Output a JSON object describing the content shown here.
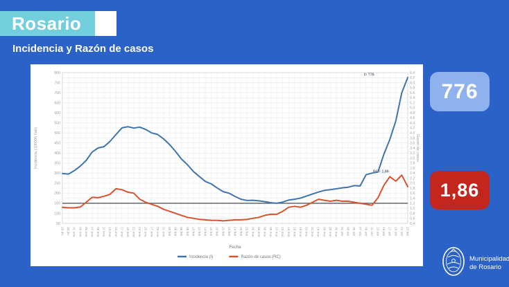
{
  "header": {
    "title": "Rosario",
    "subtitle": "Incidencia y Razón de casos"
  },
  "badges": {
    "incidence": {
      "value": "776"
    },
    "ratio": {
      "value": "1,86"
    }
  },
  "footer_logo": {
    "line1": "Municipalidad",
    "line2": "de Rosario"
  },
  "colors": {
    "background_blue": "#2b62c8",
    "teal_band": "#74cfdc",
    "badge_light_blue": "#8fb1ee",
    "badge_red": "#c3261c",
    "line_incidencia": "#3c74ad",
    "line_razon": "#d9522b"
  },
  "chart_data": {
    "type": "line",
    "title": "",
    "xlabel": "Fecha",
    "ylabel_left": "Incidencia (100000 hab)",
    "ylabel_right": "Razón de casos",
    "ylim_left": [
      50,
      800
    ],
    "ylim_right": [
      0.4,
      6.4
    ],
    "grid": true,
    "legend_position": "bottom",
    "reference_line": {
      "axis": "left",
      "value": 150
    },
    "categories": [
      "28 dic",
      "30 dic",
      "01 ene",
      "03 ene",
      "05 ene",
      "07 ene",
      "09 ene",
      "11 ene",
      "13 ene",
      "15 ene",
      "17 ene",
      "19 ene",
      "21 ene",
      "23 ene",
      "25 ene",
      "27 ene",
      "29 ene",
      "31 ene",
      "02 feb",
      "04 feb",
      "06 feb",
      "08 feb",
      "10 feb",
      "12 feb",
      "14 feb",
      "16 feb",
      "18 feb",
      "20 feb",
      "22 feb",
      "24 feb",
      "26 feb",
      "28 feb",
      "02 mar",
      "04 mar",
      "06 mar",
      "08 mar",
      "10 mar",
      "12 mar",
      "14 mar",
      "16 mar",
      "18 mar",
      "20 mar",
      "22 mar",
      "24 mar",
      "26 mar",
      "28 mar",
      "30 mar",
      "01 abr",
      "03 abr",
      "05 abr",
      "07 abr",
      "09 abr",
      "11 abr",
      "13 abr",
      "15 abr",
      "17 abr",
      "19 abr",
      "21 abr",
      "23 abr"
    ],
    "series": [
      {
        "name": "Incidencia (I)",
        "axis": "left",
        "color": "#3c74ad",
        "values": [
          298,
          295,
          312,
          335,
          363,
          405,
          425,
          432,
          458,
          492,
          525,
          531,
          524,
          529,
          517,
          500,
          492,
          470,
          442,
          408,
          370,
          342,
          308,
          283,
          259,
          246,
          226,
          208,
          200,
          184,
          170,
          164,
          165,
          162,
          158,
          153,
          150,
          156,
          166,
          170,
          176,
          186,
          196,
          206,
          214,
          218,
          222,
          227,
          230,
          238,
          236,
          292,
          300,
          306,
          395,
          468,
          560,
          700,
          776
        ]
      },
      {
        "name": "Razón de casos (RC)",
        "axis": "right",
        "color": "#d9522b",
        "values": [
          1.04,
          1.02,
          1.02,
          1.05,
          1.24,
          1.44,
          1.42,
          1.48,
          1.56,
          1.78,
          1.74,
          1.64,
          1.6,
          1.36,
          1.24,
          1.16,
          1.08,
          0.96,
          0.88,
          0.8,
          0.72,
          0.64,
          0.6,
          0.56,
          0.54,
          0.52,
          0.52,
          0.5,
          0.52,
          0.54,
          0.54,
          0.56,
          0.6,
          0.64,
          0.72,
          0.76,
          0.76,
          0.88,
          1.04,
          1.08,
          1.04,
          1.12,
          1.24,
          1.36,
          1.32,
          1.28,
          1.32,
          1.28,
          1.28,
          1.24,
          1.2,
          1.16,
          1.12,
          1.42,
          1.92,
          2.26,
          2.08,
          2.32,
          1.86
        ]
      }
    ],
    "annotations": [
      {
        "text": "I= 776",
        "axis": "left",
        "x_index": 51.5,
        "value": 785
      },
      {
        "text": "RC= 1,86",
        "axis": "right",
        "x_index": 53.5,
        "value": 2.42
      }
    ]
  }
}
